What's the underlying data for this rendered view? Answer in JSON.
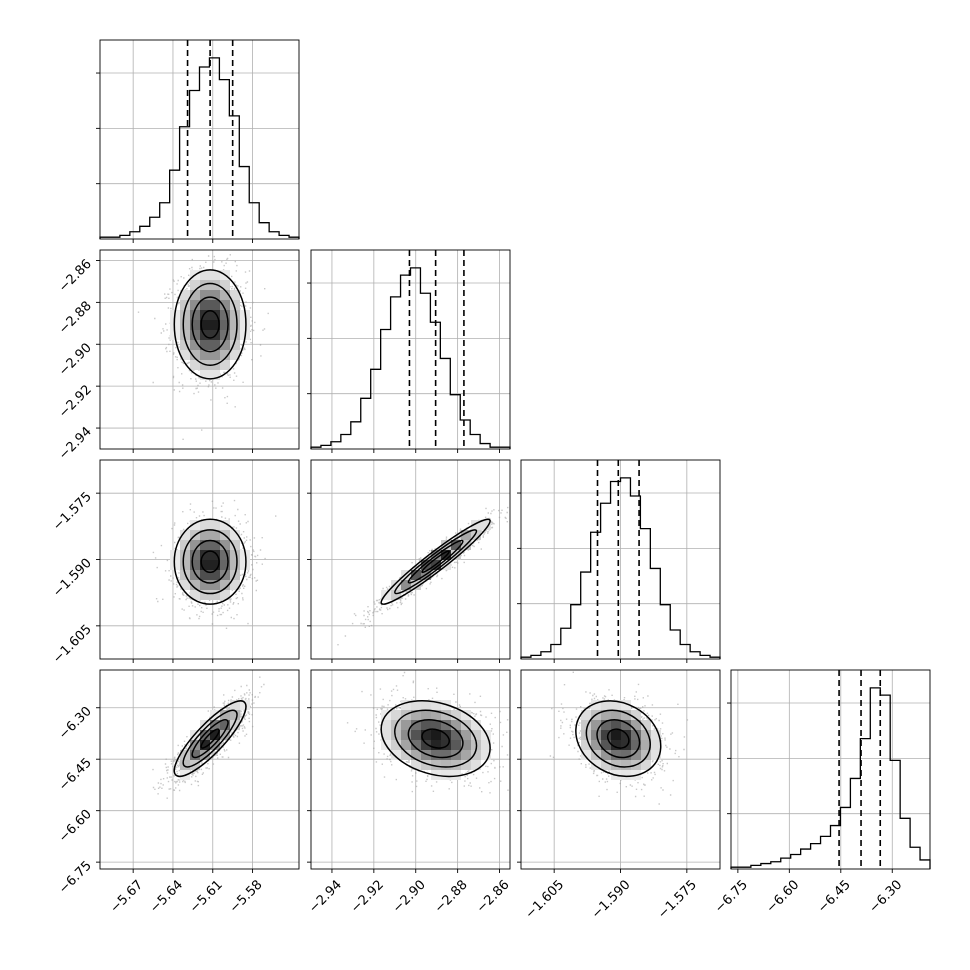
{
  "chart_data": {
    "type": "scatter",
    "title": "",
    "description_of_layout": "corner",
    "parameters": [
      {
        "range": [
          -5.695,
          -5.545
        ],
        "ticks": [
          -5.67,
          -5.64,
          -5.61,
          -5.58
        ],
        "tick_labels": [
          "−5.67",
          "−5.64",
          "−5.61",
          "−5.58"
        ],
        "quantiles": [
          -5.629,
          -5.612,
          -5.595
        ],
        "mean": -5.612,
        "std": 0.0135,
        "hist": [
          1,
          1,
          2,
          4,
          7,
          12,
          20,
          38,
          62,
          82,
          95,
          100,
          88,
          68,
          40,
          20,
          9,
          4,
          2,
          1
        ]
      },
      {
        "range": [
          -2.95,
          -2.855
        ],
        "ticks": [
          -2.94,
          -2.92,
          -2.9,
          -2.88,
          -2.86
        ],
        "tick_labels": [
          "−2.94",
          "−2.92",
          "−2.90",
          "−2.88",
          "−2.86"
        ],
        "quantiles": [
          -2.903,
          -2.8905,
          -2.877
        ],
        "mean": -2.8905,
        "std": 0.013,
        "hist": [
          1,
          2,
          4,
          8,
          15,
          28,
          44,
          66,
          84,
          96,
          100,
          86,
          70,
          50,
          30,
          16,
          8,
          3,
          1,
          1
        ]
      },
      {
        "range": [
          -1.6125,
          -1.5675
        ],
        "ticks": [
          -1.605,
          -1.59,
          -1.575
        ],
        "tick_labels": [
          "−1.605",
          "−1.590",
          "−1.575"
        ],
        "quantiles": [
          -1.5952,
          -1.5905,
          -1.5858
        ],
        "mean": -1.5905,
        "std": 0.0048,
        "hist": [
          1,
          2,
          4,
          8,
          17,
          30,
          48,
          70,
          86,
          98,
          100,
          90,
          72,
          50,
          30,
          16,
          8,
          4,
          2,
          1
        ]
      },
      {
        "range": [
          -6.77,
          -6.19
        ],
        "ticks": [
          -6.75,
          -6.6,
          -6.45,
          -6.3
        ],
        "tick_labels": [
          "−6.75",
          "−6.60",
          "−6.45",
          "−6.30"
        ],
        "quantiles": [
          -6.455,
          -6.391,
          -6.335
        ],
        "mean": -6.39,
        "std": 0.055,
        "hist": [
          1,
          1,
          2,
          3,
          4,
          6,
          8,
          11,
          14,
          18,
          24,
          34,
          50,
          72,
          100,
          96,
          60,
          28,
          12,
          5
        ]
      }
    ],
    "correlations": {
      "1-0": 0.0,
      "2-0": 0.0,
      "2-1": 0.96,
      "3-0": 0.85,
      "3-1": -0.25,
      "3-2": -0.2
    },
    "contour_levels": [
      0.5,
      1.0,
      1.5,
      2.0
    ],
    "grid": true,
    "colors": {
      "hist_line": "#000000",
      "points": "#9a9a9a",
      "density_dark": "#000000",
      "grid": "#b0b0b0"
    }
  }
}
